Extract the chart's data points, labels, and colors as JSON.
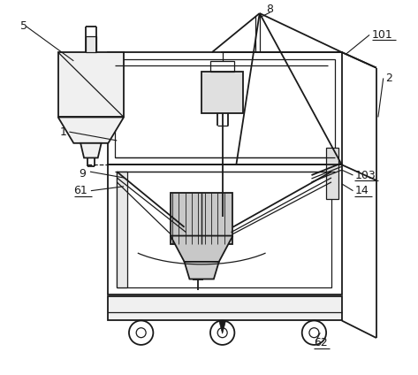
{
  "bg_color": "#ffffff",
  "line_color": "#1a1a1a",
  "lw": 1.3,
  "tlw": 0.9,
  "label_fs": 9,
  "figsize": [
    4.73,
    4.24
  ],
  "dpi": 100
}
